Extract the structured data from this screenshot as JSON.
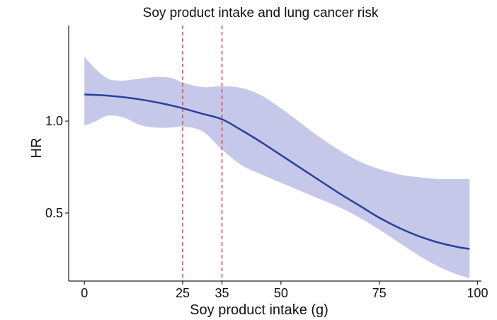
{
  "chart_data": {
    "type": "area",
    "title": "Soy product intake and lung cancer risk",
    "xlabel": "Soy product intake (g)",
    "ylabel": "HR",
    "xlim": [
      -4,
      101
    ],
    "ylim": [
      0.13,
      1.52
    ],
    "xticks": [
      {
        "value": 0,
        "label": "0"
      },
      {
        "value": 25,
        "label": "25"
      },
      {
        "value": 35,
        "label": "35"
      },
      {
        "value": 50,
        "label": "50"
      },
      {
        "value": 75,
        "label": "75"
      },
      {
        "value": 100,
        "label": "100"
      }
    ],
    "yticks": [
      {
        "value": 0.5,
        "label": "0.5"
      },
      {
        "value": 1.0,
        "label": "1.0"
      }
    ],
    "reference_lines_x": [
      25,
      35
    ],
    "series": [
      {
        "name": "HR",
        "x": [
          0,
          5,
          10,
          15,
          20,
          25,
          30,
          35,
          40,
          45,
          50,
          55,
          60,
          65,
          70,
          75,
          80,
          85,
          90,
          95,
          98
        ],
        "values": [
          1.145,
          1.14,
          1.13,
          1.115,
          1.095,
          1.07,
          1.04,
          1.01,
          0.95,
          0.885,
          0.815,
          0.745,
          0.675,
          0.605,
          0.54,
          0.475,
          0.42,
          0.375,
          0.34,
          0.315,
          0.305
        ]
      },
      {
        "name": "95% CI upper",
        "x": [
          0,
          3,
          6,
          9,
          12,
          18,
          22,
          25,
          30,
          35,
          40,
          45,
          50,
          55,
          60,
          65,
          70,
          75,
          80,
          85,
          90,
          95,
          98
        ],
        "values": [
          1.35,
          1.28,
          1.23,
          1.22,
          1.225,
          1.24,
          1.235,
          1.21,
          1.185,
          1.19,
          1.18,
          1.14,
          1.07,
          0.99,
          0.91,
          0.84,
          0.78,
          0.74,
          0.71,
          0.695,
          0.685,
          0.685,
          0.685
        ]
      },
      {
        "name": "95% CI lower",
        "x": [
          0,
          3,
          6,
          10,
          14,
          18,
          22,
          25,
          30,
          35,
          40,
          45,
          50,
          55,
          60,
          65,
          70,
          75,
          80,
          85,
          90,
          95,
          98
        ],
        "values": [
          0.975,
          1.0,
          1.03,
          1.02,
          0.98,
          0.965,
          0.965,
          0.97,
          0.945,
          0.845,
          0.76,
          0.71,
          0.665,
          0.62,
          0.575,
          0.53,
          0.475,
          0.41,
          0.34,
          0.27,
          0.21,
          0.165,
          0.145
        ]
      }
    ],
    "colors": {
      "line": "#2b3f9e",
      "ci_fill": "#c6c8ea",
      "ref_line": "#e04040",
      "axis": "#222222"
    }
  }
}
